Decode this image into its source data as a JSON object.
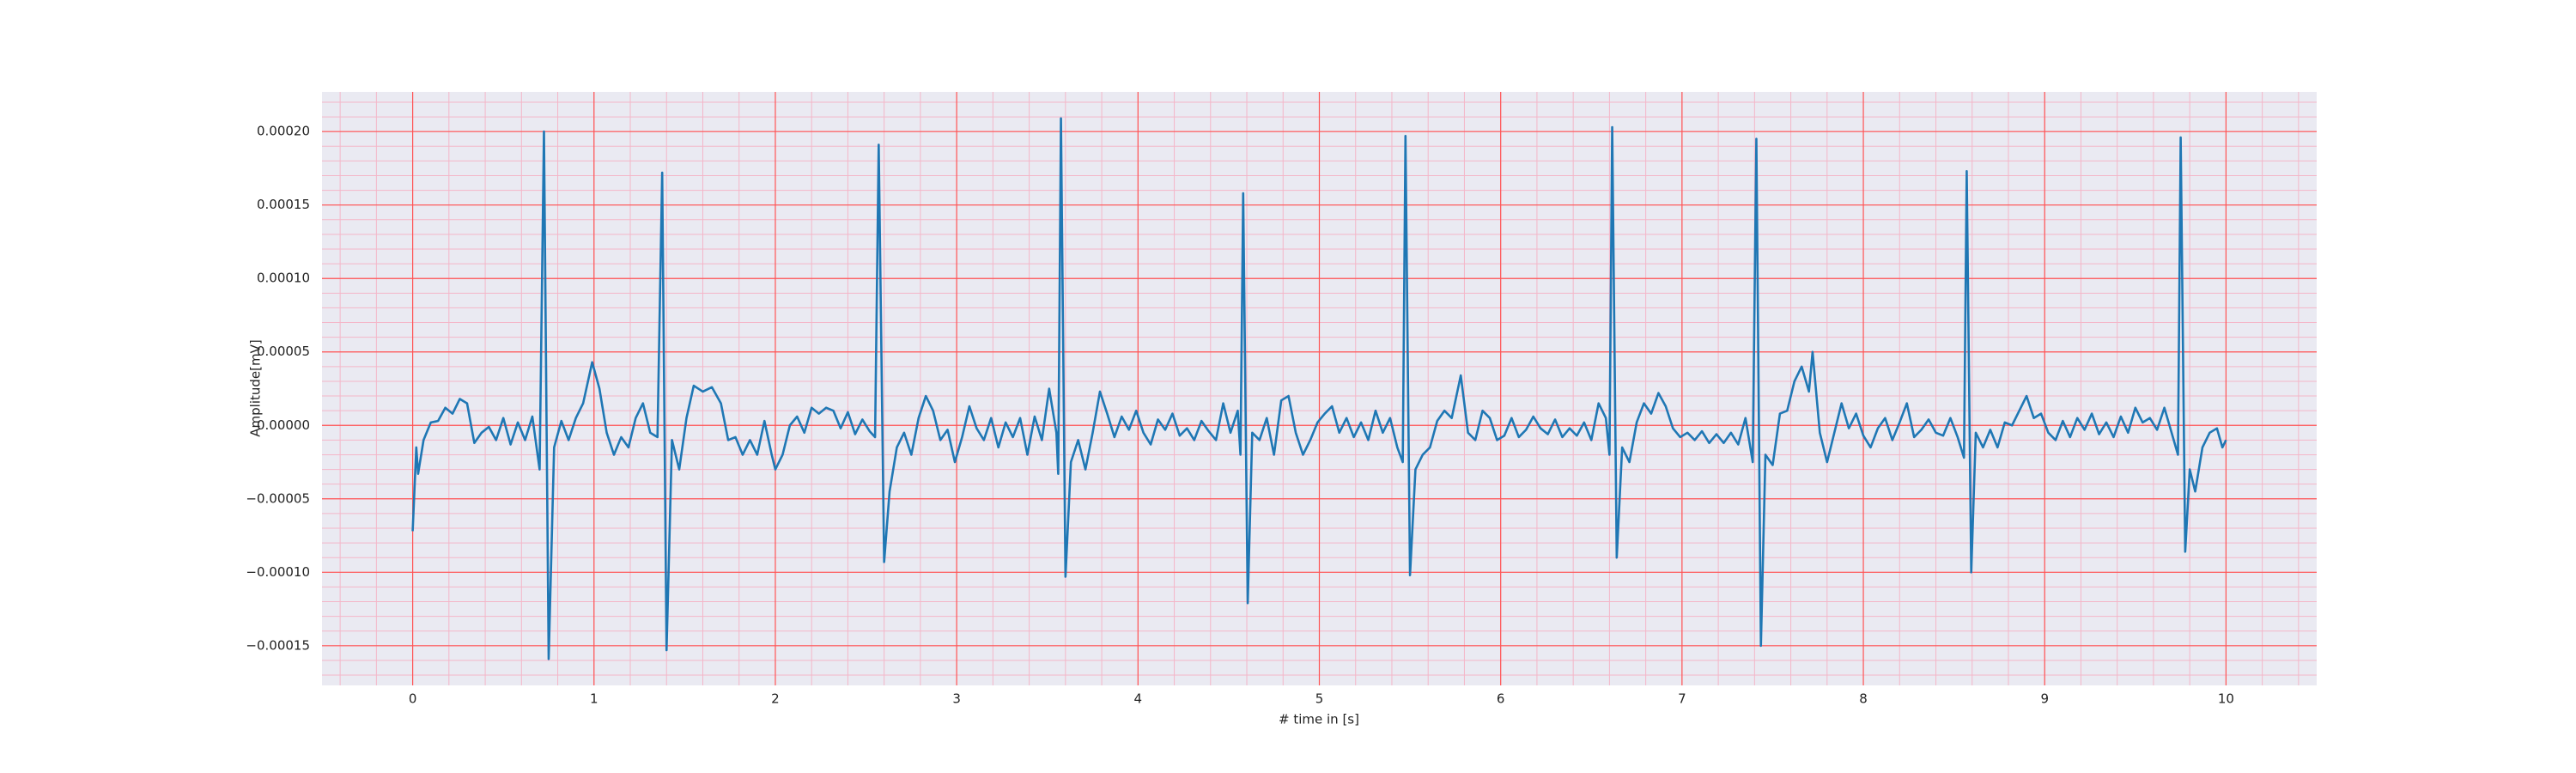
{
  "chart_data": {
    "type": "line",
    "xlabel": "# time in [s]",
    "ylabel": "Amplitude[mV]",
    "color": "#1f77b4",
    "grid": true,
    "background": "#eaeaf2",
    "grid_color": "#ff5555",
    "minor_grid_color": "#f4b6c8",
    "minor_grid": {
      "x": 0.2,
      "y": 1e-05
    },
    "xlim": [
      -0.5,
      10.5
    ],
    "xticks": [
      0,
      1,
      2,
      3,
      4,
      5,
      6,
      7,
      8,
      9,
      10
    ],
    "ylim": [
      -0.000177,
      0.000227
    ],
    "yticks": [
      {
        "value": -0.00015,
        "label": "−0.00015"
      },
      {
        "value": -0.0001,
        "label": "−0.00010"
      },
      {
        "value": -5e-05,
        "label": "−0.00005"
      },
      {
        "value": 0,
        "label": "0.00000"
      },
      {
        "value": 5e-05,
        "label": "0.00005"
      },
      {
        "value": 0.0001,
        "label": "0.00010"
      },
      {
        "value": 0.00015,
        "label": "0.00015"
      },
      {
        "value": 0.0002,
        "label": "0.00020"
      }
    ],
    "x": [
      0,
      0.02,
      0.03,
      0.06,
      0.1,
      0.14,
      0.18,
      0.22,
      0.26,
      0.3,
      0.34,
      0.38,
      0.42,
      0.46,
      0.5,
      0.54,
      0.58,
      0.62,
      0.66,
      0.7,
      0.724,
      0.75,
      0.78,
      0.82,
      0.86,
      0.9,
      0.94,
      0.99,
      1.03,
      1.07,
      1.11,
      1.15,
      1.19,
      1.23,
      1.27,
      1.31,
      1.35,
      1.376,
      1.4,
      1.43,
      1.47,
      1.51,
      1.55,
      1.6,
      1.65,
      1.7,
      1.74,
      1.78,
      1.82,
      1.86,
      1.9,
      1.94,
      1.98,
      2.0,
      2.04,
      2.08,
      2.12,
      2.16,
      2.2,
      2.24,
      2.28,
      2.32,
      2.36,
      2.4,
      2.44,
      2.48,
      2.52,
      2.55,
      2.57,
      2.6,
      2.63,
      2.67,
      2.71,
      2.75,
      2.79,
      2.83,
      2.87,
      2.91,
      2.95,
      2.99,
      3.03,
      3.07,
      3.11,
      3.15,
      3.19,
      3.23,
      3.27,
      3.31,
      3.35,
      3.39,
      3.43,
      3.47,
      3.51,
      3.55,
      3.56,
      3.575,
      3.6,
      3.63,
      3.67,
      3.71,
      3.75,
      3.79,
      3.83,
      3.87,
      3.91,
      3.95,
      3.99,
      4.03,
      4.07,
      4.11,
      4.15,
      4.19,
      4.23,
      4.27,
      4.31,
      4.35,
      4.39,
      4.43,
      4.47,
      4.51,
      4.55,
      4.565,
      4.58,
      4.605,
      4.63,
      4.67,
      4.71,
      4.75,
      4.79,
      4.83,
      4.87,
      4.91,
      4.95,
      4.99,
      5.03,
      5.07,
      5.11,
      5.15,
      5.19,
      5.23,
      5.27,
      5.31,
      5.35,
      5.39,
      5.43,
      5.46,
      5.475,
      5.5,
      5.53,
      5.57,
      5.61,
      5.65,
      5.69,
      5.73,
      5.78,
      5.82,
      5.86,
      5.9,
      5.94,
      5.98,
      6.02,
      6.06,
      6.1,
      6.14,
      6.18,
      6.22,
      6.26,
      6.3,
      6.34,
      6.38,
      6.42,
      6.46,
      6.5,
      6.54,
      6.58,
      6.6,
      6.615,
      6.64,
      6.67,
      6.71,
      6.75,
      6.79,
      6.83,
      6.87,
      6.91,
      6.95,
      6.99,
      7.03,
      7.07,
      7.11,
      7.15,
      7.19,
      7.23,
      7.27,
      7.31,
      7.35,
      7.39,
      7.41,
      7.435,
      7.46,
      7.5,
      7.54,
      7.58,
      7.62,
      7.66,
      7.7,
      7.72,
      7.76,
      7.8,
      7.84,
      7.88,
      7.92,
      7.96,
      8.0,
      8.04,
      8.08,
      8.12,
      8.16,
      8.2,
      8.24,
      8.28,
      8.32,
      8.36,
      8.4,
      8.44,
      8.48,
      8.52,
      8.555,
      8.57,
      8.595,
      8.62,
      8.66,
      8.7,
      8.74,
      8.78,
      8.82,
      8.86,
      8.9,
      8.94,
      8.98,
      9.02,
      9.06,
      9.1,
      9.14,
      9.18,
      9.22,
      9.26,
      9.3,
      9.34,
      9.38,
      9.42,
      9.46,
      9.5,
      9.54,
      9.58,
      9.62,
      9.66,
      9.7,
      9.735,
      9.75,
      9.775,
      9.8,
      9.83,
      9.87,
      9.91,
      9.95,
      9.98,
      10.0
    ],
    "values": [
      -7.2e-05,
      -1.5e-05,
      -3.3e-05,
      -1e-05,
      2e-06,
      3e-06,
      1.2e-05,
      8e-06,
      1.8e-05,
      1.5e-05,
      -1.2e-05,
      -5e-06,
      -1e-06,
      -1e-05,
      5e-06,
      -1.3e-05,
      2e-06,
      -1e-05,
      6e-06,
      -3e-05,
      0.0002,
      -0.000159,
      -1.5e-05,
      3e-06,
      -1e-05,
      5e-06,
      1.5e-05,
      4.3e-05,
      2.5e-05,
      -5e-06,
      -2e-05,
      -8e-06,
      -1.5e-05,
      5e-06,
      1.5e-05,
      -5e-06,
      -8e-06,
      0.000172,
      -0.000153,
      -1e-05,
      -3e-05,
      5e-06,
      2.7e-05,
      2.3e-05,
      2.6e-05,
      1.5e-05,
      -1e-05,
      -8e-06,
      -2e-05,
      -1e-05,
      -2e-05,
      3e-06,
      -2e-05,
      -3e-05,
      -2e-05,
      0,
      6e-06,
      -5e-06,
      1.2e-05,
      8e-06,
      1.2e-05,
      1e-05,
      -2e-06,
      9e-06,
      -6e-06,
      4e-06,
      -4e-06,
      -8e-06,
      0.000191,
      -9.3e-05,
      -4.5e-05,
      -1.5e-05,
      -5e-06,
      -2e-05,
      5e-06,
      2e-05,
      1e-05,
      -1e-05,
      -3e-06,
      -2.5e-05,
      -8e-06,
      1.3e-05,
      -2e-06,
      -1e-05,
      5e-06,
      -1.5e-05,
      2e-06,
      -8e-06,
      5e-06,
      -2e-05,
      6e-06,
      -1e-05,
      2.5e-05,
      -5e-06,
      -3.3e-05,
      0.000209,
      -0.000103,
      -2.5e-05,
      -1e-05,
      -3e-05,
      -5e-06,
      2.3e-05,
      8e-06,
      -8e-06,
      6e-06,
      -3e-06,
      1e-05,
      -5e-06,
      -1.3e-05,
      4e-06,
      -3e-06,
      8e-06,
      -7e-06,
      -2e-06,
      -1e-05,
      3e-06,
      -4e-06,
      -1e-05,
      1.5e-05,
      -5e-06,
      1e-05,
      -2e-05,
      0.000158,
      -0.000121,
      -5e-06,
      -1e-05,
      5e-06,
      -2e-05,
      1.7e-05,
      2e-05,
      -5e-06,
      -2e-05,
      -1e-05,
      2e-06,
      8e-06,
      1.3e-05,
      -5e-06,
      5e-06,
      -8e-06,
      2e-06,
      -1e-05,
      1e-05,
      -5e-06,
      5e-06,
      -1.5e-05,
      -2.5e-05,
      0.000197,
      -0.000102,
      -3e-05,
      -2e-05,
      -1.5e-05,
      3e-06,
      1e-05,
      5e-06,
      3.4e-05,
      -5e-06,
      -1e-05,
      1e-05,
      5e-06,
      -1e-05,
      -7e-06,
      5e-06,
      -8e-06,
      -3e-06,
      6e-06,
      -2e-06,
      -6e-06,
      4e-06,
      -8e-06,
      -2e-06,
      -7e-06,
      2e-06,
      -1e-05,
      1.5e-05,
      5e-06,
      -2e-05,
      0.000203,
      -9e-05,
      -1.5e-05,
      -2.5e-05,
      2e-06,
      1.5e-05,
      8e-06,
      2.2e-05,
      1.3e-05,
      -2e-06,
      -8e-06,
      -5e-06,
      -1e-05,
      -4e-06,
      -1.2e-05,
      -6e-06,
      -1.2e-05,
      -5e-06,
      -1.3e-05,
      5e-06,
      -2.5e-05,
      0.000195,
      -0.00015,
      -2e-05,
      -2.7e-05,
      8e-06,
      1e-05,
      3e-05,
      4e-05,
      2.3e-05,
      5e-05,
      -5e-06,
      -2.5e-05,
      -5e-06,
      1.5e-05,
      -2e-06,
      8e-06,
      -7e-06,
      -1.5e-05,
      -2e-06,
      5e-06,
      -1e-05,
      2e-06,
      1.5e-05,
      -8e-06,
      -3e-06,
      4e-06,
      -5e-06,
      -7e-06,
      5e-06,
      -8e-06,
      -2.2e-05,
      0.000173,
      -0.0001,
      -5e-06,
      -1.5e-05,
      -3e-06,
      -1.5e-05,
      2e-06,
      0,
      1e-05,
      2e-05,
      5e-06,
      8e-06,
      -5e-06,
      -1e-05,
      3e-06,
      -8e-06,
      5e-06,
      -3e-06,
      8e-06,
      -6e-06,
      2e-06,
      -8e-06,
      6e-06,
      -5e-06,
      1.2e-05,
      2e-06,
      5e-06,
      -3e-06,
      1.2e-05,
      -5e-06,
      -2e-05,
      0.000196,
      -8.6e-05,
      -3e-05,
      -4.5e-05,
      -1.5e-05,
      -5e-06,
      -2e-06,
      -1.5e-05,
      -1e-05
    ]
  }
}
